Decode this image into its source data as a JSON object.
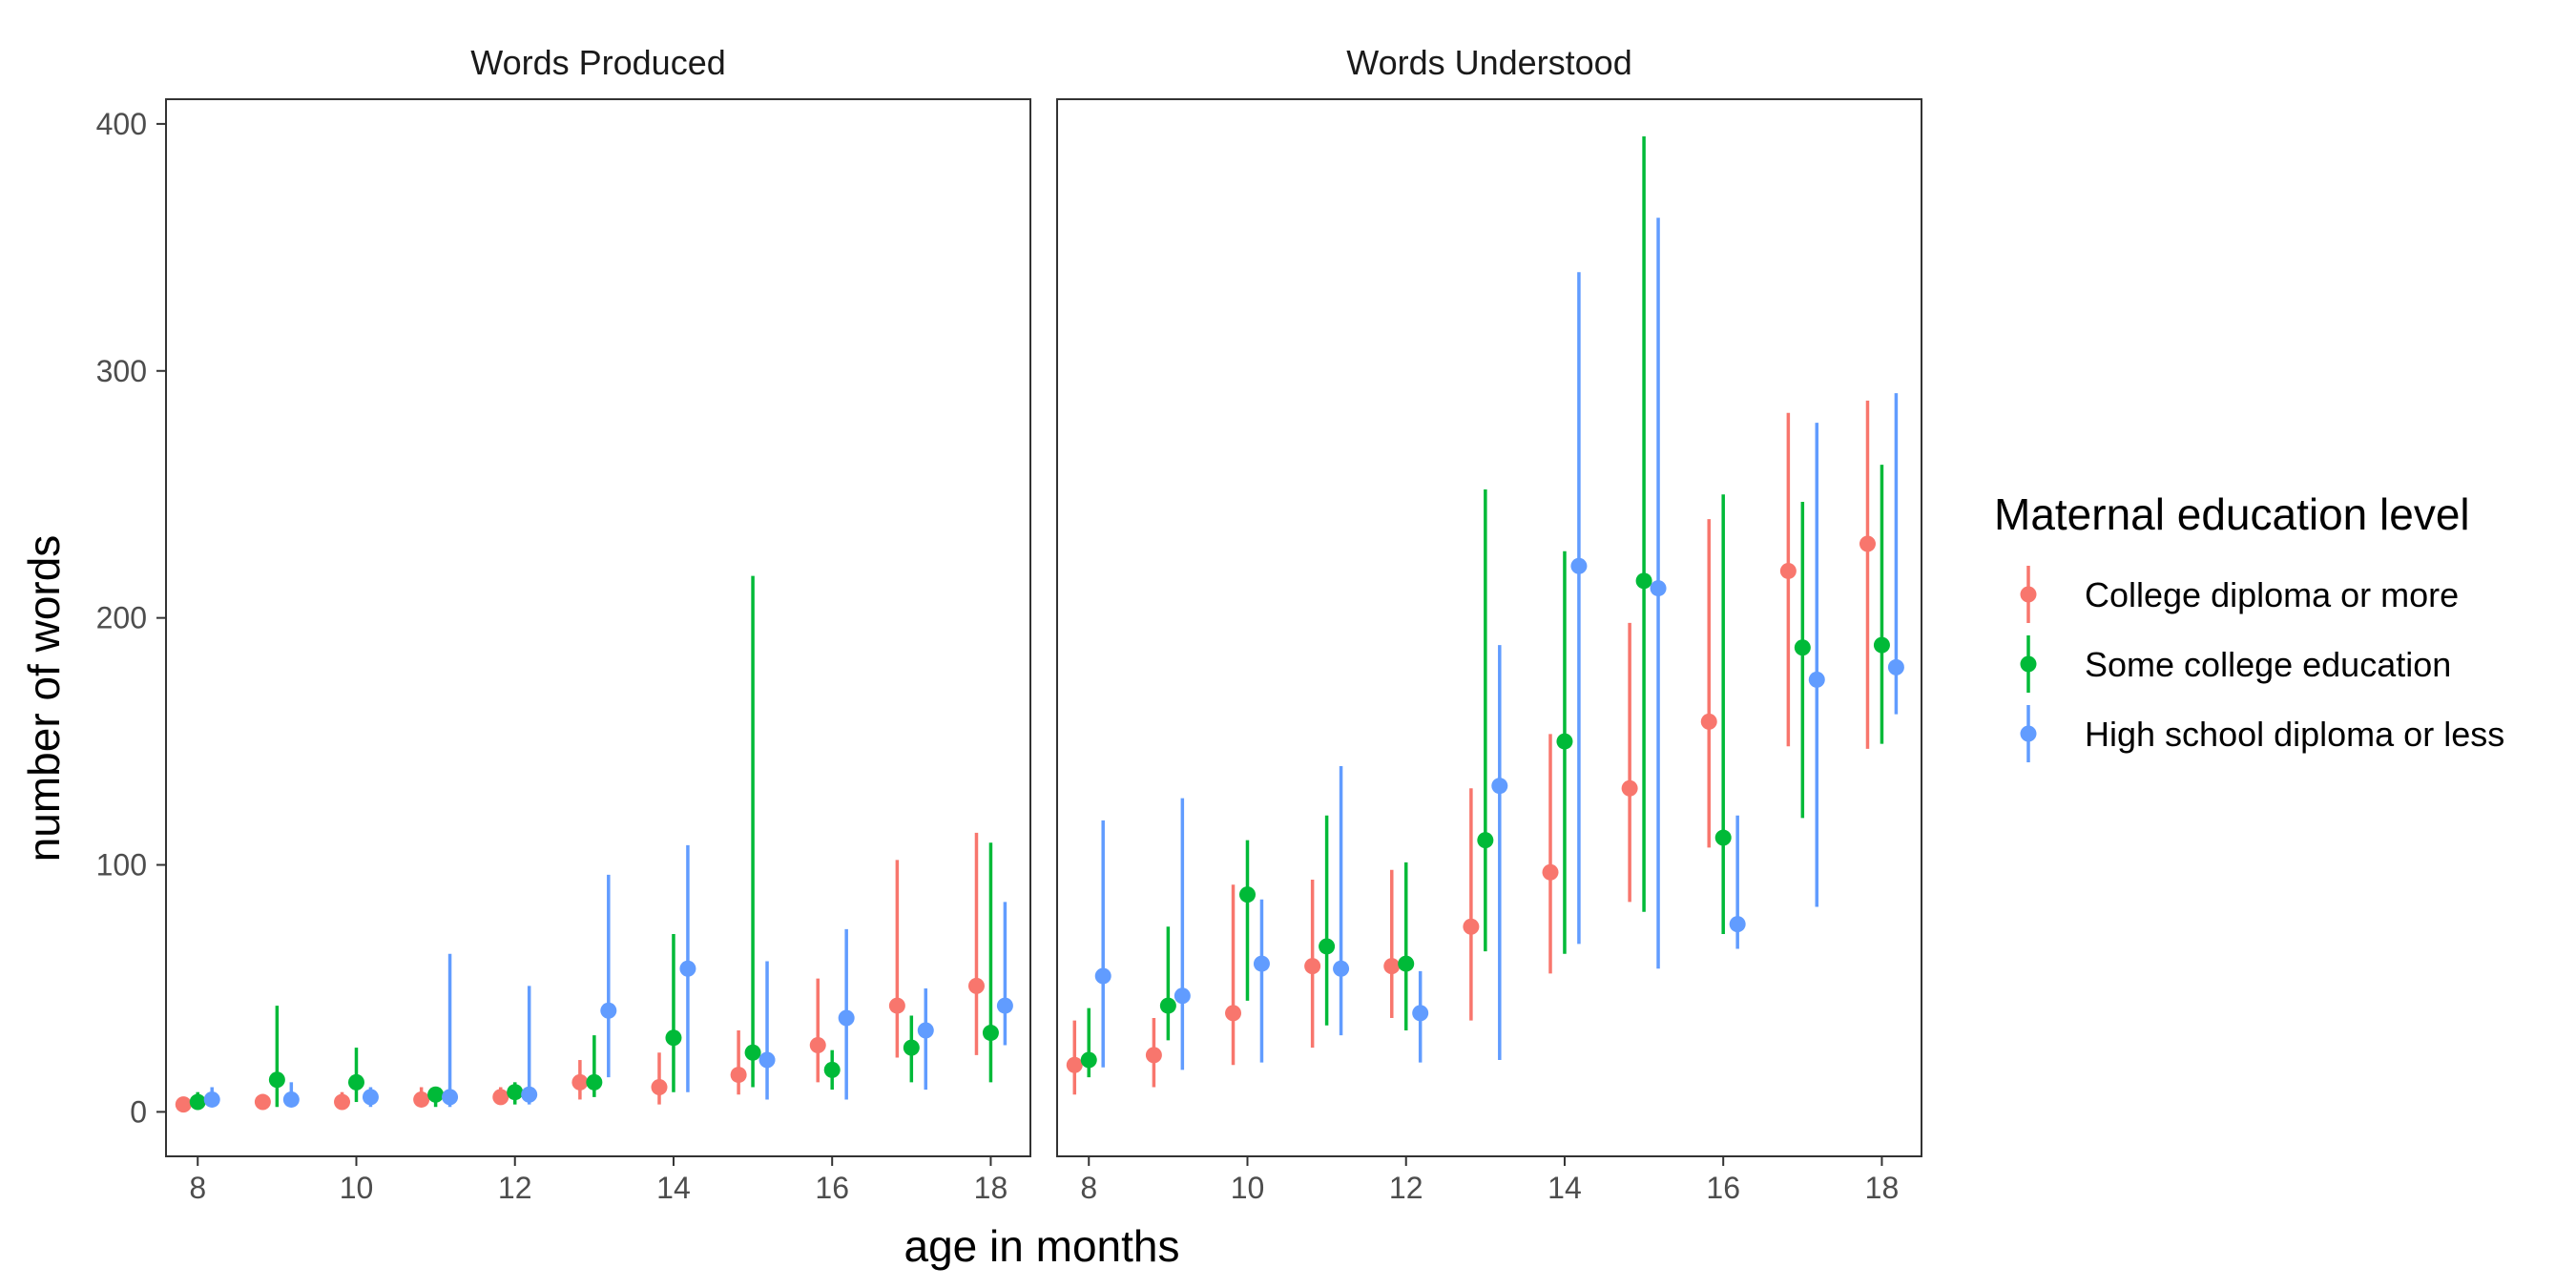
{
  "chart_data": {
    "type": "scatter",
    "xlabel": "age in months",
    "ylabel": "number of words",
    "xlim": [
      7.6,
      18.5
    ],
    "ylim": [
      -18,
      410
    ],
    "x_ticks": [
      8,
      10,
      12,
      14,
      16,
      18
    ],
    "y_ticks": [
      0,
      100,
      200,
      300,
      400
    ],
    "legend": {
      "title": "Maternal education level",
      "placement": "right"
    },
    "series": [
      {
        "name": "College diploma or more",
        "color": "#F8766D",
        "offset": -0.18
      },
      {
        "name": "Some college education",
        "color": "#00BA38",
        "offset": 0.0
      },
      {
        "name": "High school diploma or less",
        "color": "#619CFF",
        "offset": 0.18
      }
    ],
    "panels": [
      {
        "title": "Words Produced",
        "data": [
          {
            "age": 8,
            "points": [
              {
                "y": 3,
                "lo": 1,
                "hi": 5
              },
              {
                "y": 4,
                "lo": 1,
                "hi": 8
              },
              {
                "y": 5,
                "lo": 2,
                "hi": 10
              }
            ]
          },
          {
            "age": 9,
            "points": [
              {
                "y": 4,
                "lo": 2,
                "hi": 6
              },
              {
                "y": 13,
                "lo": 2,
                "hi": 43
              },
              {
                "y": 5,
                "lo": 2,
                "hi": 12
              }
            ]
          },
          {
            "age": 10,
            "points": [
              {
                "y": 4,
                "lo": 1,
                "hi": 8
              },
              {
                "y": 12,
                "lo": 4,
                "hi": 26
              },
              {
                "y": 6,
                "lo": 2,
                "hi": 10
              }
            ]
          },
          {
            "age": 11,
            "points": [
              {
                "y": 5,
                "lo": 2,
                "hi": 10
              },
              {
                "y": 7,
                "lo": 2,
                "hi": 10
              },
              {
                "y": 6,
                "lo": 2,
                "hi": 64
              }
            ]
          },
          {
            "age": 12,
            "points": [
              {
                "y": 6,
                "lo": 3,
                "hi": 10
              },
              {
                "y": 8,
                "lo": 3,
                "hi": 12
              },
              {
                "y": 7,
                "lo": 3,
                "hi": 51
              }
            ]
          },
          {
            "age": 13,
            "points": [
              {
                "y": 12,
                "lo": 5,
                "hi": 21
              },
              {
                "y": 12,
                "lo": 6,
                "hi": 31
              },
              {
                "y": 41,
                "lo": 14,
                "hi": 96
              }
            ]
          },
          {
            "age": 14,
            "points": [
              {
                "y": 10,
                "lo": 3,
                "hi": 24
              },
              {
                "y": 30,
                "lo": 8,
                "hi": 72
              },
              {
                "y": 58,
                "lo": 8,
                "hi": 108
              }
            ]
          },
          {
            "age": 15,
            "points": [
              {
                "y": 15,
                "lo": 7,
                "hi": 33
              },
              {
                "y": 24,
                "lo": 10,
                "hi": 217
              },
              {
                "y": 21,
                "lo": 5,
                "hi": 61
              }
            ]
          },
          {
            "age": 16,
            "points": [
              {
                "y": 27,
                "lo": 12,
                "hi": 54
              },
              {
                "y": 17,
                "lo": 9,
                "hi": 25
              },
              {
                "y": 38,
                "lo": 5,
                "hi": 74
              }
            ]
          },
          {
            "age": 17,
            "points": [
              {
                "y": 43,
                "lo": 22,
                "hi": 102
              },
              {
                "y": 26,
                "lo": 12,
                "hi": 39
              },
              {
                "y": 33,
                "lo": 9,
                "hi": 50
              }
            ]
          },
          {
            "age": 18,
            "points": [
              {
                "y": 51,
                "lo": 23,
                "hi": 113
              },
              {
                "y": 32,
                "lo": 12,
                "hi": 109
              },
              {
                "y": 43,
                "lo": 27,
                "hi": 85
              }
            ]
          }
        ]
      },
      {
        "title": "Words Understood",
        "data": [
          {
            "age": 8,
            "points": [
              {
                "y": 19,
                "lo": 7,
                "hi": 37
              },
              {
                "y": 21,
                "lo": 14,
                "hi": 42
              },
              {
                "y": 55,
                "lo": 18,
                "hi": 118
              }
            ]
          },
          {
            "age": 9,
            "points": [
              {
                "y": 23,
                "lo": 10,
                "hi": 38
              },
              {
                "y": 43,
                "lo": 29,
                "hi": 75
              },
              {
                "y": 47,
                "lo": 17,
                "hi": 127
              }
            ]
          },
          {
            "age": 10,
            "points": [
              {
                "y": 40,
                "lo": 19,
                "hi": 92
              },
              {
                "y": 88,
                "lo": 45,
                "hi": 110
              },
              {
                "y": 60,
                "lo": 20,
                "hi": 86
              }
            ]
          },
          {
            "age": 11,
            "points": [
              {
                "y": 59,
                "lo": 26,
                "hi": 94
              },
              {
                "y": 67,
                "lo": 35,
                "hi": 120
              },
              {
                "y": 58,
                "lo": 31,
                "hi": 140
              }
            ]
          },
          {
            "age": 12,
            "points": [
              {
                "y": 59,
                "lo": 38,
                "hi": 98
              },
              {
                "y": 60,
                "lo": 33,
                "hi": 101
              },
              {
                "y": 40,
                "lo": 20,
                "hi": 57
              }
            ]
          },
          {
            "age": 13,
            "points": [
              {
                "y": 75,
                "lo": 37,
                "hi": 131
              },
              {
                "y": 110,
                "lo": 65,
                "hi": 252
              },
              {
                "y": 132,
                "lo": 21,
                "hi": 189
              }
            ]
          },
          {
            "age": 14,
            "points": [
              {
                "y": 97,
                "lo": 56,
                "hi": 153
              },
              {
                "y": 150,
                "lo": 64,
                "hi": 227
              },
              {
                "y": 221,
                "lo": 68,
                "hi": 340
              }
            ]
          },
          {
            "age": 15,
            "points": [
              {
                "y": 131,
                "lo": 85,
                "hi": 198
              },
              {
                "y": 215,
                "lo": 81,
                "hi": 395
              },
              {
                "y": 212,
                "lo": 58,
                "hi": 362
              }
            ]
          },
          {
            "age": 16,
            "points": [
              {
                "y": 158,
                "lo": 107,
                "hi": 240
              },
              {
                "y": 111,
                "lo": 72,
                "hi": 250
              },
              {
                "y": 76,
                "lo": 66,
                "hi": 120
              }
            ]
          },
          {
            "age": 17,
            "points": [
              {
                "y": 219,
                "lo": 148,
                "hi": 283
              },
              {
                "y": 188,
                "lo": 119,
                "hi": 247
              },
              {
                "y": 175,
                "lo": 83,
                "hi": 279
              }
            ]
          },
          {
            "age": 18,
            "points": [
              {
                "y": 230,
                "lo": 147,
                "hi": 288
              },
              {
                "y": 189,
                "lo": 149,
                "hi": 262
              },
              {
                "y": 180,
                "lo": 161,
                "hi": 291
              }
            ]
          }
        ]
      }
    ]
  }
}
